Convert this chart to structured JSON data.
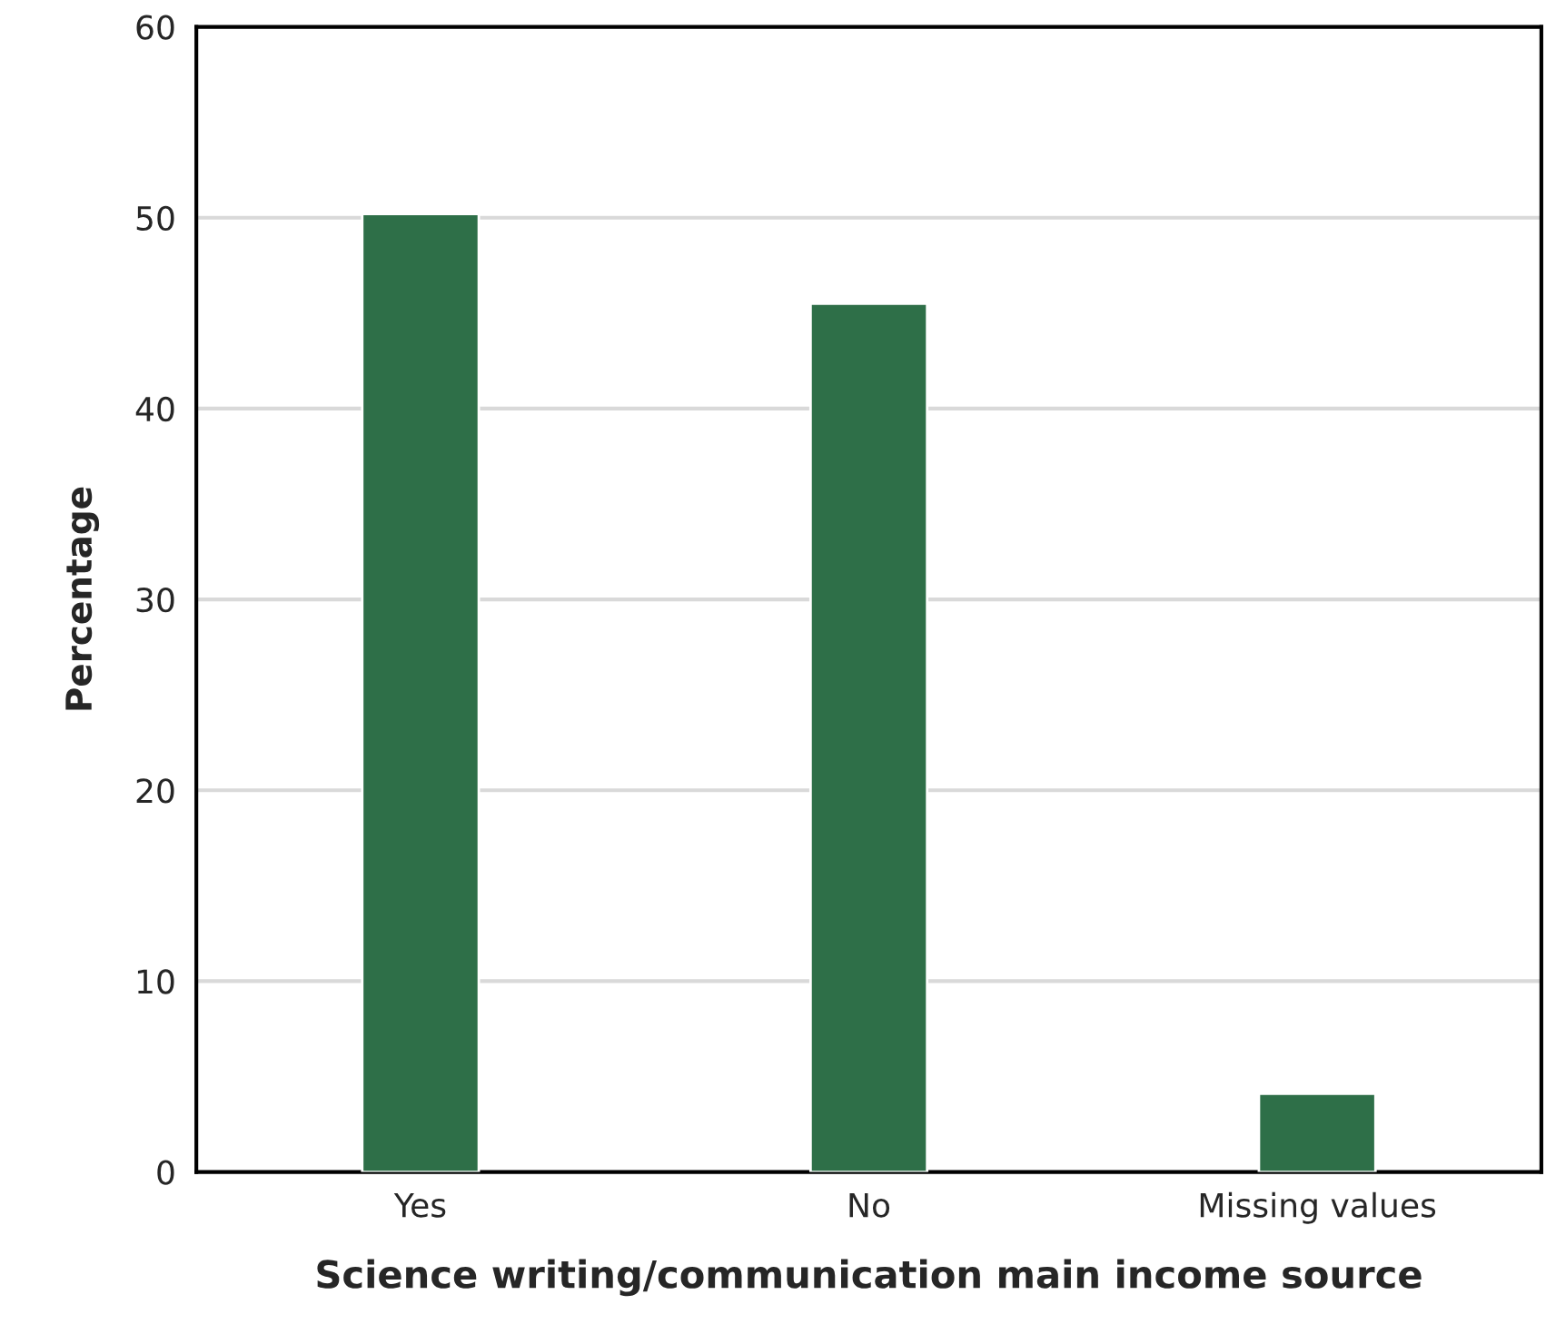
{
  "chart_data": {
    "type": "bar",
    "xlabel": "Science writing/communication main income source",
    "ylabel": "Percentage",
    "categories": [
      "Yes",
      "No",
      "Missing values"
    ],
    "values": [
      50.2,
      45.5,
      4.1
    ],
    "color": "#2e6f48",
    "ylim": [
      0,
      60
    ],
    "yticks": [
      0,
      10,
      20,
      30,
      40,
      50,
      60
    ],
    "grid": "y",
    "legend": false
  }
}
